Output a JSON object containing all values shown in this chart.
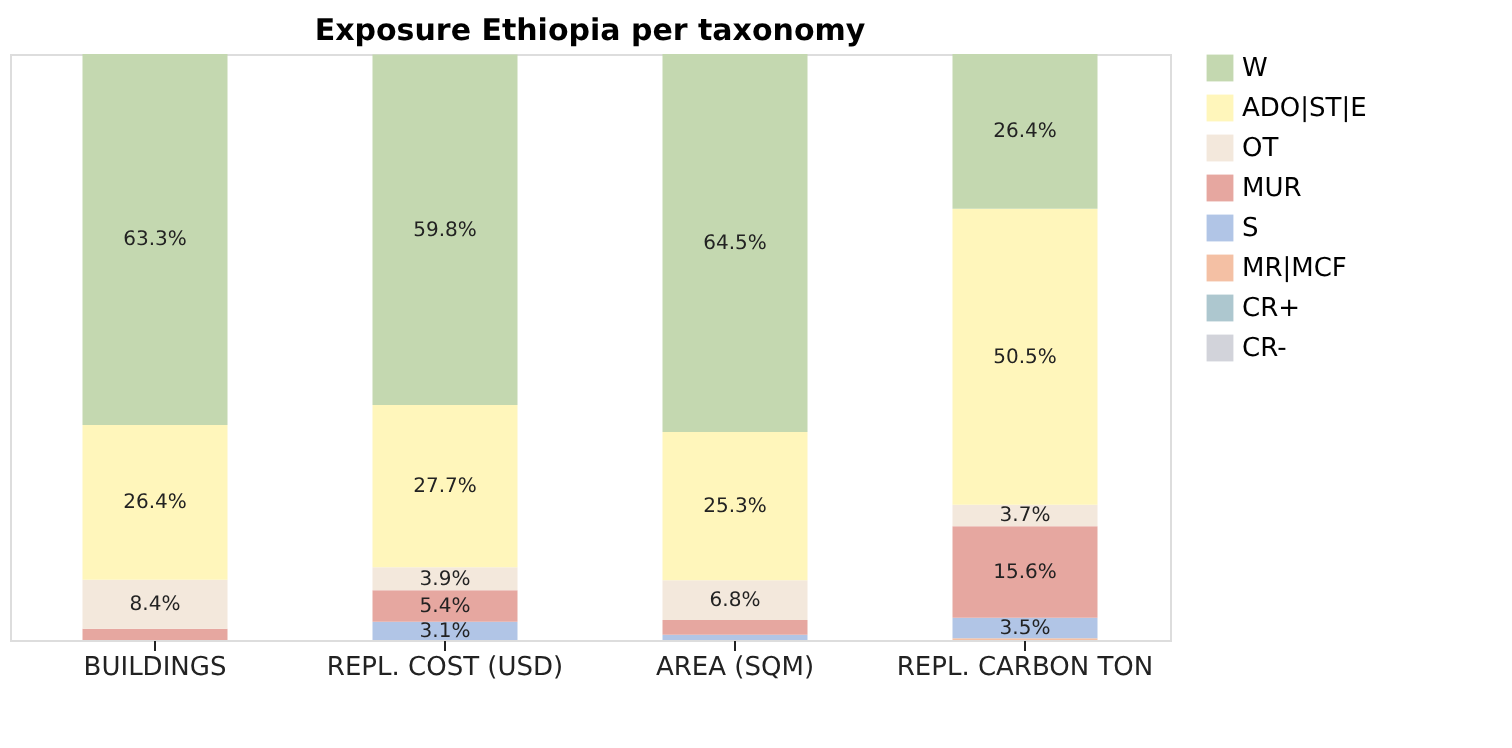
{
  "chart_data": {
    "type": "bar",
    "title": "Exposure Ethiopia per taxonomy",
    "stacked": true,
    "categories": [
      "BUILDINGS",
      "REPL. COST (USD)",
      "AREA (SQM)",
      "REPL. CARBON TON"
    ],
    "legend": "top right",
    "grid": false,
    "series": [
      {
        "name": "CR-",
        "color": "#d2d3da",
        "values": [
          0,
          0,
          0,
          0
        ],
        "value_labels": [
          null,
          null,
          null,
          null
        ]
      },
      {
        "name": "CR+",
        "color": "#adc7cf",
        "values": [
          0,
          0,
          0,
          0
        ],
        "value_labels": [
          null,
          null,
          null,
          null
        ]
      },
      {
        "name": "MR|MCF",
        "color": "#f4c0a4",
        "values": [
          0,
          0,
          0,
          0.3
        ],
        "value_labels": [
          null,
          null,
          null,
          null
        ]
      },
      {
        "name": "S",
        "color": "#b1c5e6",
        "values": [
          0,
          3.1,
          0.9,
          3.5
        ],
        "value_labels": [
          null,
          "3.1%",
          null,
          "3.5%"
        ]
      },
      {
        "name": "MUR",
        "color": "#e6a7a0",
        "values": [
          1.9,
          5.4,
          2.5,
          15.6
        ],
        "value_labels": [
          null,
          "5.4%",
          null,
          "15.6%"
        ]
      },
      {
        "name": "OT",
        "color": "#f3e8dc",
        "values": [
          8.4,
          3.9,
          6.8,
          3.7
        ],
        "value_labels": [
          "8.4%",
          "3.9%",
          "6.8%",
          "3.7%"
        ]
      },
      {
        "name": "ADO|ST|E",
        "color": "#fff6bb",
        "values": [
          26.4,
          27.7,
          25.3,
          50.5
        ],
        "value_labels": [
          "26.4%",
          "27.7%",
          "25.3%",
          "50.5%"
        ]
      },
      {
        "name": "W",
        "color": "#c4d8b0",
        "values": [
          63.3,
          59.8,
          64.5,
          26.4
        ],
        "value_labels": [
          "63.3%",
          "59.8%",
          "64.5%",
          "26.4%"
        ]
      }
    ]
  }
}
